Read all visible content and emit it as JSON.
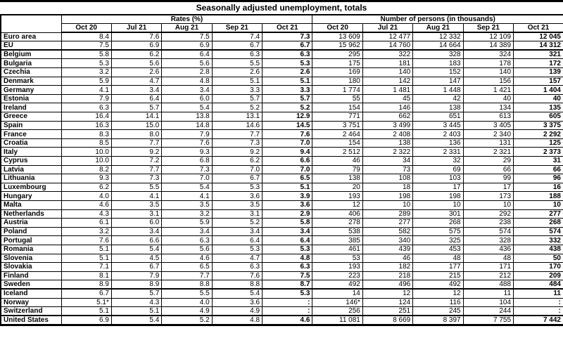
{
  "title": "Seasonally adjusted unemployment, totals",
  "table": {
    "group_headers": {
      "rates": "Rates (%)",
      "persons": "Number of persons (in thousands)"
    },
    "months": [
      "Oct 20",
      "Jul 21",
      "Aug 21",
      "Sep 21",
      "Oct 21"
    ],
    "rows": [
      {
        "country": "Euro area",
        "section": "aggregates",
        "rates": [
          "8.4",
          "7.6",
          "7.5",
          "7.4",
          "7.3"
        ],
        "persons": [
          "13 609",
          "12 477",
          "12 332",
          "12 109",
          "12 045"
        ]
      },
      {
        "country": "EU",
        "section": "aggregates",
        "rates": [
          "7.5",
          "6.9",
          "6.9",
          "6.7",
          "6.7"
        ],
        "persons": [
          "15 962",
          "14 760",
          "14 664",
          "14 389",
          "14 312"
        ]
      },
      {
        "country": "Belgium",
        "section": "eu-members",
        "rates": [
          "5.8",
          "6.2",
          "6.4",
          "6.3",
          "6.3"
        ],
        "persons": [
          "295",
          "322",
          "328",
          "324",
          "321"
        ]
      },
      {
        "country": "Bulgaria",
        "section": "eu-members",
        "rates": [
          "5.3",
          "5.6",
          "5.6",
          "5.5",
          "5.3"
        ],
        "persons": [
          "175",
          "181",
          "183",
          "178",
          "172"
        ]
      },
      {
        "country": "Czechia",
        "section": "eu-members",
        "rates": [
          "3.2",
          "2.6",
          "2.8",
          "2.6",
          "2.6"
        ],
        "persons": [
          "169",
          "140",
          "152",
          "140",
          "139"
        ]
      },
      {
        "country": "Denmark",
        "section": "eu-members",
        "rates": [
          "5.9",
          "4.7",
          "4.8",
          "5.1",
          "5.1"
        ],
        "persons": [
          "180",
          "142",
          "147",
          "156",
          "157"
        ]
      },
      {
        "country": "Germany",
        "section": "eu-members",
        "rates": [
          "4.1",
          "3.4",
          "3.4",
          "3.3",
          "3.3"
        ],
        "persons": [
          "1 774",
          "1 481",
          "1 448",
          "1 421",
          "1 404"
        ]
      },
      {
        "country": "Estonia",
        "section": "eu-members",
        "rates": [
          "7.9",
          "6.4",
          "6.0",
          "5.7",
          "5.7"
        ],
        "persons": [
          "55",
          "45",
          "42",
          "40",
          "40"
        ]
      },
      {
        "country": "Ireland",
        "section": "eu-members",
        "rates": [
          "6.3",
          "5.7",
          "5.4",
          "5.2",
          "5.2"
        ],
        "persons": [
          "154",
          "146",
          "138",
          "134",
          "135"
        ]
      },
      {
        "country": "Greece",
        "section": "eu-members",
        "rates": [
          "16.4",
          "14.1",
          "13.8",
          "13.1",
          "12.9"
        ],
        "persons": [
          "771",
          "662",
          "651",
          "613",
          "605"
        ]
      },
      {
        "country": "Spain",
        "section": "eu-members",
        "rates": [
          "16.3",
          "15.0",
          "14.8",
          "14.6",
          "14.5"
        ],
        "persons": [
          "3 751",
          "3 499",
          "3 445",
          "3 405",
          "3 375"
        ]
      },
      {
        "country": "France",
        "section": "eu-members",
        "rates": [
          "8.3",
          "8.0",
          "7.9",
          "7.7",
          "7.6"
        ],
        "persons": [
          "2 464",
          "2 408",
          "2 403",
          "2 340",
          "2 292"
        ]
      },
      {
        "country": "Croatia",
        "section": "eu-members",
        "rates": [
          "8.5",
          "7.7",
          "7.6",
          "7.3",
          "7.0"
        ],
        "persons": [
          "154",
          "138",
          "136",
          "131",
          "125"
        ]
      },
      {
        "country": "Italy",
        "section": "eu-members",
        "rates": [
          "10.0",
          "9.2",
          "9.3",
          "9.2",
          "9.4"
        ],
        "persons": [
          "2 512",
          "2 322",
          "2 331",
          "2 321",
          "2 373"
        ]
      },
      {
        "country": "Cyprus",
        "section": "eu-members",
        "rates": [
          "10.0",
          "7.2",
          "6.8",
          "6.2",
          "6.6"
        ],
        "persons": [
          "46",
          "34",
          "32",
          "29",
          "31"
        ]
      },
      {
        "country": "Latvia",
        "section": "eu-members",
        "rates": [
          "8.2",
          "7.7",
          "7.3",
          "7.0",
          "7.0"
        ],
        "persons": [
          "79",
          "73",
          "69",
          "66",
          "66"
        ]
      },
      {
        "country": "Lithuania",
        "section": "eu-members",
        "rates": [
          "9.3",
          "7.3",
          "7.0",
          "6.7",
          "6.5"
        ],
        "persons": [
          "138",
          "108",
          "103",
          "99",
          "96"
        ]
      },
      {
        "country": "Luxembourg",
        "section": "eu-members",
        "rates": [
          "6.2",
          "5.5",
          "5.4",
          "5.3",
          "5.1"
        ],
        "persons": [
          "20",
          "18",
          "17",
          "17",
          "16"
        ]
      },
      {
        "country": "Hungary",
        "section": "eu-members",
        "rates": [
          "4.0",
          "4.1",
          "4.1",
          "3.6",
          "3.9"
        ],
        "persons": [
          "193",
          "198",
          "198",
          "173",
          "188"
        ]
      },
      {
        "country": "Malta",
        "section": "eu-members",
        "rates": [
          "4.6",
          "3.5",
          "3.5",
          "3.5",
          "3.6"
        ],
        "persons": [
          "12",
          "10",
          "10",
          "10",
          "10"
        ]
      },
      {
        "country": "Netherlands",
        "section": "eu-members",
        "rates": [
          "4.3",
          "3.1",
          "3.2",
          "3.1",
          "2.9"
        ],
        "persons": [
          "406",
          "289",
          "301",
          "292",
          "277"
        ]
      },
      {
        "country": "Austria",
        "section": "eu-members",
        "rates": [
          "6.1",
          "6.0",
          "5.9",
          "5.2",
          "5.8"
        ],
        "persons": [
          "278",
          "277",
          "268",
          "238",
          "268"
        ]
      },
      {
        "country": "Poland",
        "section": "eu-members",
        "rates": [
          "3.2",
          "3.4",
          "3.4",
          "3.4",
          "3.4"
        ],
        "persons": [
          "538",
          "582",
          "575",
          "574",
          "574"
        ]
      },
      {
        "country": "Portugal",
        "section": "eu-members",
        "rates": [
          "7.6",
          "6.6",
          "6.3",
          "6.4",
          "6.4"
        ],
        "persons": [
          "385",
          "340",
          "325",
          "328",
          "332"
        ]
      },
      {
        "country": "Romania",
        "section": "eu-members",
        "rates": [
          "5.1",
          "5.4",
          "5.6",
          "5.3",
          "5.3"
        ],
        "persons": [
          "461",
          "439",
          "453",
          "436",
          "438"
        ]
      },
      {
        "country": "Slovenia",
        "section": "eu-members",
        "rates": [
          "5.1",
          "4.5",
          "4.6",
          "4.7",
          "4.8"
        ],
        "persons": [
          "53",
          "46",
          "48",
          "48",
          "50"
        ]
      },
      {
        "country": "Slovakia",
        "section": "eu-members",
        "rates": [
          "7.1",
          "6.7",
          "6.5",
          "6.3",
          "6.3"
        ],
        "persons": [
          "193",
          "182",
          "177",
          "171",
          "170"
        ]
      },
      {
        "country": "Finland",
        "section": "eu-members",
        "rates": [
          "8.1",
          "7.9",
          "7.7",
          "7.6",
          "7.5"
        ],
        "persons": [
          "223",
          "218",
          "215",
          "212",
          "209"
        ]
      },
      {
        "country": "Sweden",
        "section": "eu-members",
        "rates": [
          "8.9",
          "8.9",
          "8.8",
          "8.8",
          "8.7"
        ],
        "persons": [
          "492",
          "496",
          "492",
          "488",
          "484"
        ]
      },
      {
        "country": "Iceland",
        "section": "non-eu",
        "rates": [
          "6.7",
          "5.7",
          "5.5",
          "5.4",
          "5.3"
        ],
        "persons": [
          "14",
          "12",
          "12",
          "11",
          "11"
        ]
      },
      {
        "country": "Norway",
        "section": "non-eu",
        "rates": [
          "5.1*",
          "4.3",
          "4.0",
          "3.6",
          ":"
        ],
        "persons": [
          "146*",
          "124",
          "116",
          "104",
          ":"
        ]
      },
      {
        "country": "Switzerland",
        "section": "non-eu",
        "rates": [
          "5.1",
          "5.1",
          "4.9",
          "4.9",
          ":"
        ],
        "persons": [
          "256",
          "251",
          "245",
          "244",
          ":"
        ]
      },
      {
        "country": "United States",
        "section": "us",
        "rates": [
          "6.9",
          "5.4",
          "5.2",
          "4.8",
          "4.6"
        ],
        "persons": [
          "11 081",
          "8 669",
          "8 397",
          "7 755",
          "7 442"
        ]
      }
    ]
  }
}
